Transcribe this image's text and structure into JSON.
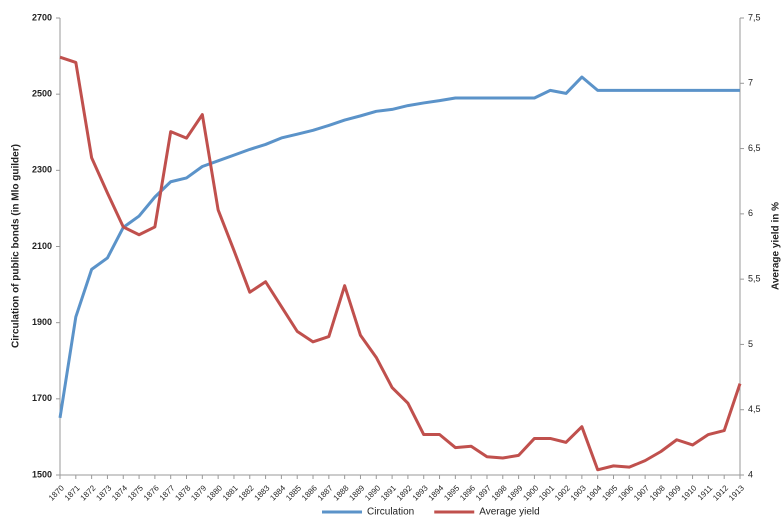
{
  "chart_data": {
    "type": "line",
    "y_label": "Circulation of public bonds (in Mlo guilder)",
    "y2_label": "Average yield in %",
    "categories": [
      "1870",
      "1871",
      "1872",
      "1873",
      "1874",
      "1875",
      "1876",
      "1877",
      "1878",
      "1879",
      "1880",
      "1881",
      "1882",
      "1883",
      "1884",
      "1885",
      "1886",
      "1887",
      "1888",
      "1889",
      "1890",
      "1891",
      "1892",
      "1893",
      "1894",
      "1895",
      "1896",
      "1897",
      "1898",
      "1899",
      "1900",
      "1901",
      "1902",
      "1903",
      "1904",
      "1905",
      "1906",
      "1907",
      "1908",
      "1909",
      "1910",
      "1911",
      "1912",
      "1913"
    ],
    "series": [
      {
        "name": "Circulation",
        "color": "#5b93c9",
        "axis": "y",
        "values": [
          1650,
          1915,
          2040,
          2070,
          2150,
          2180,
          2230,
          2270,
          2280,
          2310,
          2325,
          2340,
          2355,
          2368,
          2385,
          2395,
          2405,
          2418,
          2432,
          2443,
          2455,
          2460,
          2470,
          2477,
          2483,
          2490,
          2490,
          2490,
          2490,
          2490,
          2490,
          2510,
          2502,
          2545,
          2510,
          2510,
          2510,
          2510,
          2510,
          2510,
          2510,
          2510,
          2510,
          2510
        ]
      },
      {
        "name": "Average yield",
        "color": "#c0504d",
        "axis": "y2",
        "values": [
          7.2,
          7.16,
          6.43,
          6.16,
          5.9,
          5.84,
          5.9,
          6.63,
          6.58,
          6.76,
          6.03,
          5.72,
          5.4,
          5.48,
          5.29,
          5.1,
          5.02,
          5.06,
          5.45,
          5.07,
          4.9,
          4.67,
          4.55,
          4.31,
          4.31,
          4.21,
          4.22,
          4.14,
          4.13,
          4.15,
          4.28,
          4.28,
          4.25,
          4.37,
          4.04,
          4.07,
          4.06,
          4.11,
          4.18,
          4.27,
          4.23,
          4.31,
          4.34,
          4.7
        ]
      }
    ],
    "ylim": [
      1500,
      2700
    ],
    "yticks": [
      1500,
      1700,
      1900,
      2100,
      2300,
      2500,
      2700
    ],
    "y2lim": [
      4,
      7.5
    ],
    "y2ticks": [
      4,
      {
        "value": 4.5,
        "label": "4,5"
      },
      5,
      {
        "value": 5.5,
        "label": "5,5"
      },
      6,
      {
        "value": 6.5,
        "label": "6,5"
      },
      7,
      {
        "value": 7.5,
        "label": "7,5"
      }
    ],
    "grid": false,
    "legend": "bottom"
  }
}
